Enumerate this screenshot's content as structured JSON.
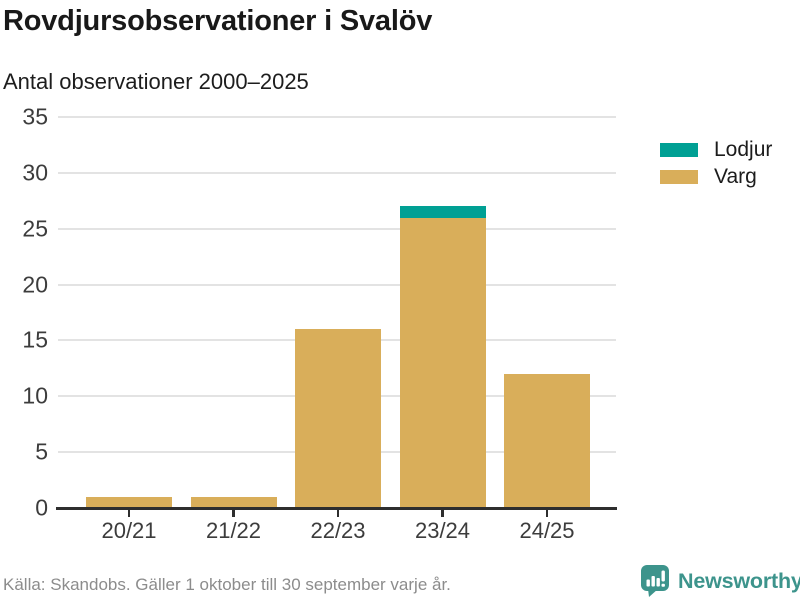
{
  "title": "Rovdjursobservationer i Svalöv",
  "subtitle": "Antal observationer 2000–2025",
  "footer": {
    "source": "Källa: Skandobs. Gäller 1 oktober till 30 september varje år."
  },
  "branding": {
    "name": "Newsworthy",
    "icon": "bar-chart-speech-bubble-icon",
    "color": "#3d948c",
    "icon_color": "#3d948c"
  },
  "colors": {
    "lodjur": "#00a094",
    "varg": "#d9ae5a",
    "gridline": "#e3e3e3",
    "axis": "#2e2e2e",
    "tick_text": "#3c3c3c",
    "title_text": "#191919",
    "muted_text": "#8c8c8c",
    "background": "#ffffff"
  },
  "chart_data": {
    "type": "bar",
    "stacked": true,
    "title": "Rovdjursobservationer i Svalöv",
    "subtitle": "Antal observationer 2000–2025",
    "ylabel": "Antal observationer",
    "xlabel": "",
    "categories": [
      "20/21",
      "21/22",
      "22/23",
      "23/24",
      "24/25"
    ],
    "series": [
      {
        "name": "Lodjur",
        "color": "#00a094",
        "values": [
          0,
          0,
          0,
          1,
          0
        ]
      },
      {
        "name": "Varg",
        "color": "#d9ae5a",
        "values": [
          1,
          1,
          16,
          26,
          12
        ]
      }
    ],
    "totals": [
      1,
      1,
      16,
      27,
      12
    ],
    "ylim": [
      0,
      35
    ],
    "yticks": [
      0,
      5,
      10,
      15,
      20,
      25,
      30,
      35
    ],
    "grid": true,
    "legend_position": "right"
  }
}
